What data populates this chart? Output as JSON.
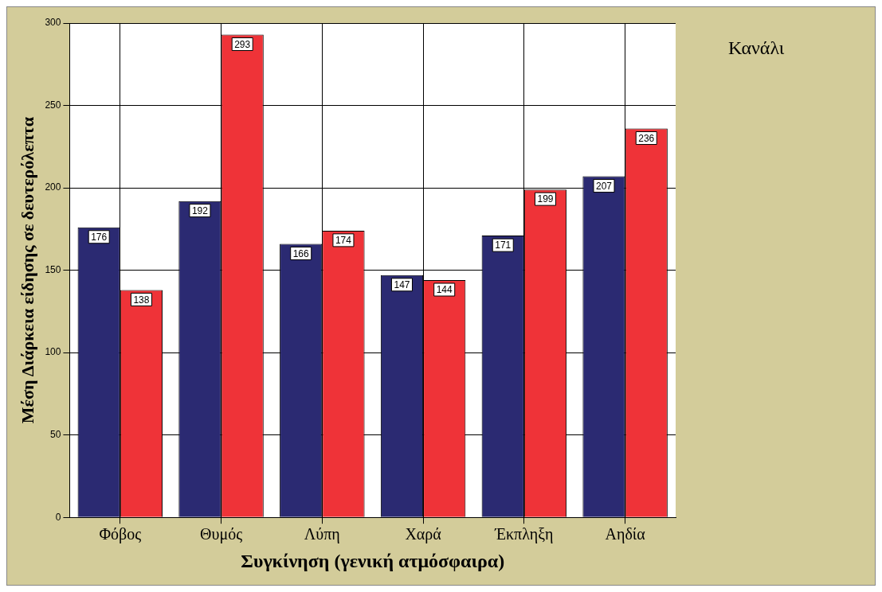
{
  "chart_data": {
    "type": "bar",
    "xlabel": "Συγκίνηση (γενική ατμόσφαιρα)",
    "ylabel": "Μέση Διάρκεια είδησης σε δευτερόλεπτα",
    "legend_title": "Κανάλι",
    "grid": true,
    "data_labels": true,
    "categories": [
      "Φόβος",
      "Θυμός",
      "Λύπη",
      "Χαρά",
      "Έκπληξη",
      "Αηδία"
    ],
    "series": [
      {
        "color": "#2b2a72",
        "values": [
          176,
          192,
          166,
          147,
          171,
          207
        ]
      },
      {
        "color": "#ef3338",
        "values": [
          138,
          293,
          174,
          144,
          199,
          236
        ]
      }
    ],
    "ylim": [
      0,
      300
    ],
    "yticks": [
      0,
      50,
      100,
      150,
      200,
      250,
      300
    ]
  }
}
